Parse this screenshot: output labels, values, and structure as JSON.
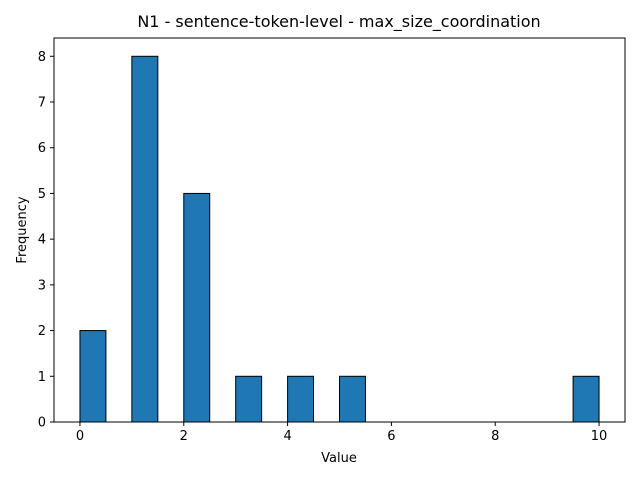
{
  "chart_data": {
    "type": "bar",
    "title": "N1 - sentence-token-level - max_size_coordination",
    "xlabel": "Value",
    "ylabel": "Frequency",
    "bar_color": "#1f77b4",
    "edge_color": "#000000",
    "bins": [
      {
        "x0": 0.0,
        "x1": 0.5,
        "count": 2
      },
      {
        "x0": 1.0,
        "x1": 1.5,
        "count": 8
      },
      {
        "x0": 2.0,
        "x1": 2.5,
        "count": 5
      },
      {
        "x0": 3.0,
        "x1": 3.5,
        "count": 1
      },
      {
        "x0": 4.0,
        "x1": 4.5,
        "count": 1
      },
      {
        "x0": 5.0,
        "x1": 5.5,
        "count": 1
      },
      {
        "x0": 9.5,
        "x1": 10.0,
        "count": 1
      }
    ],
    "xlim": [
      -0.5,
      10.5
    ],
    "ylim": [
      0,
      8.4
    ],
    "xticks": [
      0,
      2,
      4,
      6,
      8,
      10
    ],
    "yticks": [
      0,
      1,
      2,
      3,
      4,
      5,
      6,
      7,
      8
    ],
    "grid": false
  }
}
